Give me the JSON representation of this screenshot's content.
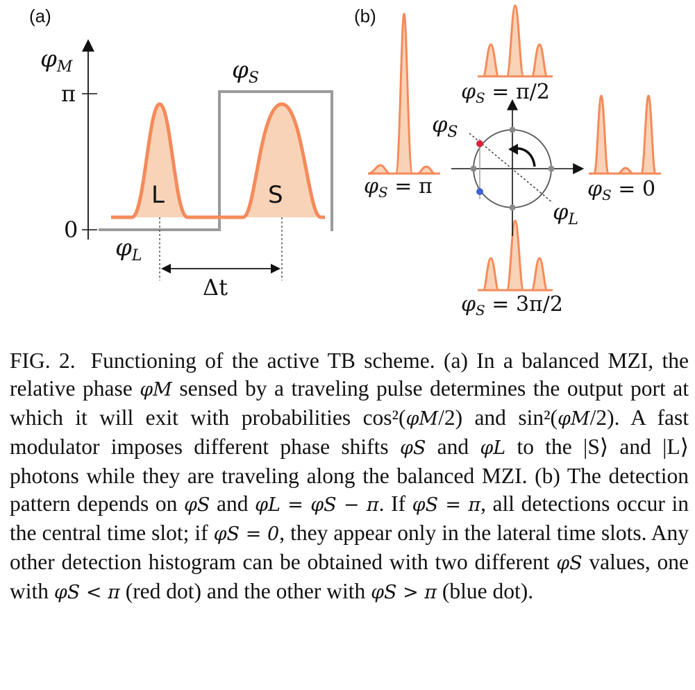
{
  "panel_a": {
    "label": "(a)",
    "axis_symbol": "φ",
    "axis_sub": "M",
    "tick_pi": "π",
    "tick_zero": "0",
    "signal_symbol": "φ",
    "signal_sub_s": "S",
    "signal_sub_l": "L",
    "pulse_l": "L",
    "pulse_s": "S",
    "delta_t": "Δt"
  },
  "panel_b": {
    "label": "(b)",
    "phi_s_label": "φS",
    "phi_l_label": "φL",
    "hist_top": "φS = π/2",
    "hist_left": "φS = π",
    "hist_right": "φS = 0",
    "hist_bottom": "φS = 3π/2",
    "hist_top_value": "π/2",
    "hist_left_value": "π",
    "hist_right_value": "0",
    "hist_bottom_value": "3π/2",
    "colors": {
      "pulse_stroke": "#f58a5a",
      "pulse_fill": "#f9d3b7",
      "red_dot": "#d6263a",
      "blue_dot": "#3f62d6",
      "gray": "#8a8a8a"
    }
  },
  "caption": {
    "fig_label": "FIG. 2.",
    "text_1": "Functioning of the active TB scheme. (a) In a balanced MZI, the relative phase ",
    "sym_phiM_1": "φM",
    "text_2": " sensed by a traveling pulse determines the output port at which it will exit with probabilities cos²(",
    "sym_phiM_2": "φM",
    "text_3": "/2) and sin²(",
    "sym_phiM_3": "φM",
    "text_4": "/2). A fast modulator imposes different phase shifts ",
    "sym_phiS_1": "φS",
    "text_5": " and ",
    "sym_phiL_1": "φL",
    "text_6": " to the |S⟩ and |L⟩ photons while they are traveling along the balanced MZI. (b) The detection pattern depends on ",
    "sym_phiS_2": "φS",
    "text_7": " and ",
    "eq_1": "φL = φS − π",
    "text_8": ". If ",
    "eq_2": "φS = π",
    "text_9": ", all detections occur in the central time slot; if ",
    "eq_3": "φS = 0",
    "text_10": ", they appear only in the lateral time slots. Any other detection histogram can be obtained with two different ",
    "sym_phiS_3": "φS",
    "text_11": " values, one with ",
    "eq_4": "φS < π",
    "text_12": " (red dot) and the other with ",
    "eq_5": "φS > π",
    "text_13": " (blue dot)."
  }
}
